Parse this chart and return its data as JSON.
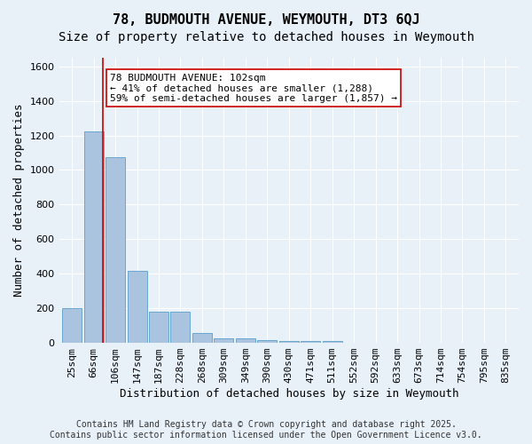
{
  "title": "78, BUDMOUTH AVENUE, WEYMOUTH, DT3 6QJ",
  "subtitle": "Size of property relative to detached houses in Weymouth",
  "xlabel": "Distribution of detached houses by size in Weymouth",
  "ylabel": "Number of detached properties",
  "bins": [
    "25sqm",
    "66sqm",
    "106sqm",
    "147sqm",
    "187sqm",
    "228sqm",
    "268sqm",
    "309sqm",
    "349sqm",
    "390sqm",
    "430sqm",
    "471sqm",
    "511sqm",
    "552sqm",
    "592sqm",
    "633sqm",
    "673sqm",
    "714sqm",
    "754sqm",
    "795sqm",
    "835sqm"
  ],
  "values": [
    200,
    1225,
    1075,
    415,
    180,
    180,
    55,
    25,
    25,
    15,
    10,
    10,
    10,
    0,
    0,
    0,
    0,
    0,
    0,
    0,
    0
  ],
  "bar_color": "#aac4e0",
  "bar_edge_color": "#5a9ec9",
  "vline_x": 1.41,
  "vline_color": "#cc0000",
  "annotation_text": "78 BUDMOUTH AVENUE: 102sqm\n← 41% of detached houses are smaller (1,288)\n59% of semi-detached houses are larger (1,857) →",
  "annotation_box_color": "#ffffff",
  "annotation_box_edge": "#cc0000",
  "ylim": [
    0,
    1650
  ],
  "yticks": [
    0,
    200,
    400,
    600,
    800,
    1000,
    1200,
    1400,
    1600
  ],
  "footer": "Contains HM Land Registry data © Crown copyright and database right 2025.\nContains public sector information licensed under the Open Government Licence v3.0.",
  "bg_color": "#e8f0f8",
  "grid_color": "#ffffff",
  "title_fontsize": 11,
  "subtitle_fontsize": 10,
  "axis_label_fontsize": 9,
  "tick_fontsize": 8,
  "footer_fontsize": 7
}
